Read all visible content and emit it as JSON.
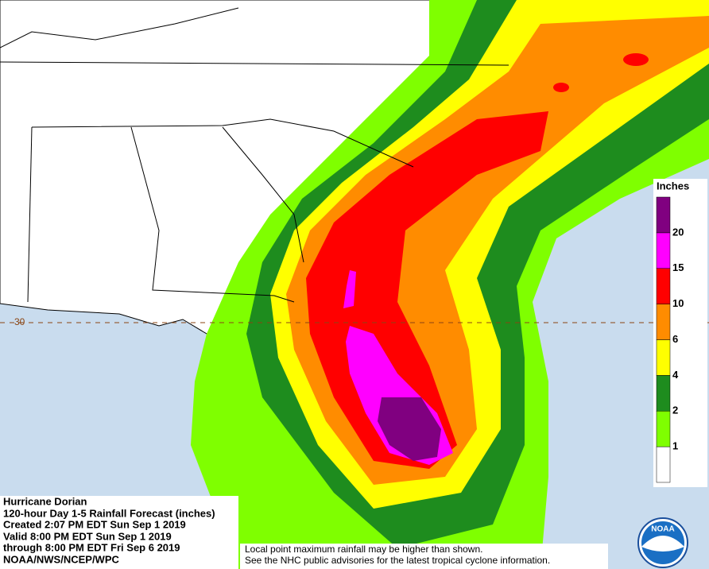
{
  "info": {
    "lines": [
      "Hurricane Dorian",
      "120-hour Day 1-5 Rainfall Forecast (inches)",
      "Created 2:07 PM EDT Sun Sep 1 2019",
      "Valid 8:00 PM EDT Sun Sep 1 2019",
      "through 8:00 PM EDT Fri Sep 6 2019",
      "NOAA/NWS/NCEP/WPC"
    ]
  },
  "disclaimer": [
    "Local point maximum rainfall may be higher than shown.",
    "See the NHC public advisories for the latest tropical cyclone information."
  ],
  "latitude_label": "30",
  "legend": {
    "title": "Inches",
    "boundaries": [
      1,
      2,
      4,
      6,
      10,
      15,
      20
    ],
    "colors": [
      "#ffffff",
      "#7fff00",
      "#1e8c1e",
      "#ffff00",
      "#ff8c00",
      "#ff0000",
      "#ff00ff",
      "#800080"
    ]
  },
  "logo": "NOAA"
}
